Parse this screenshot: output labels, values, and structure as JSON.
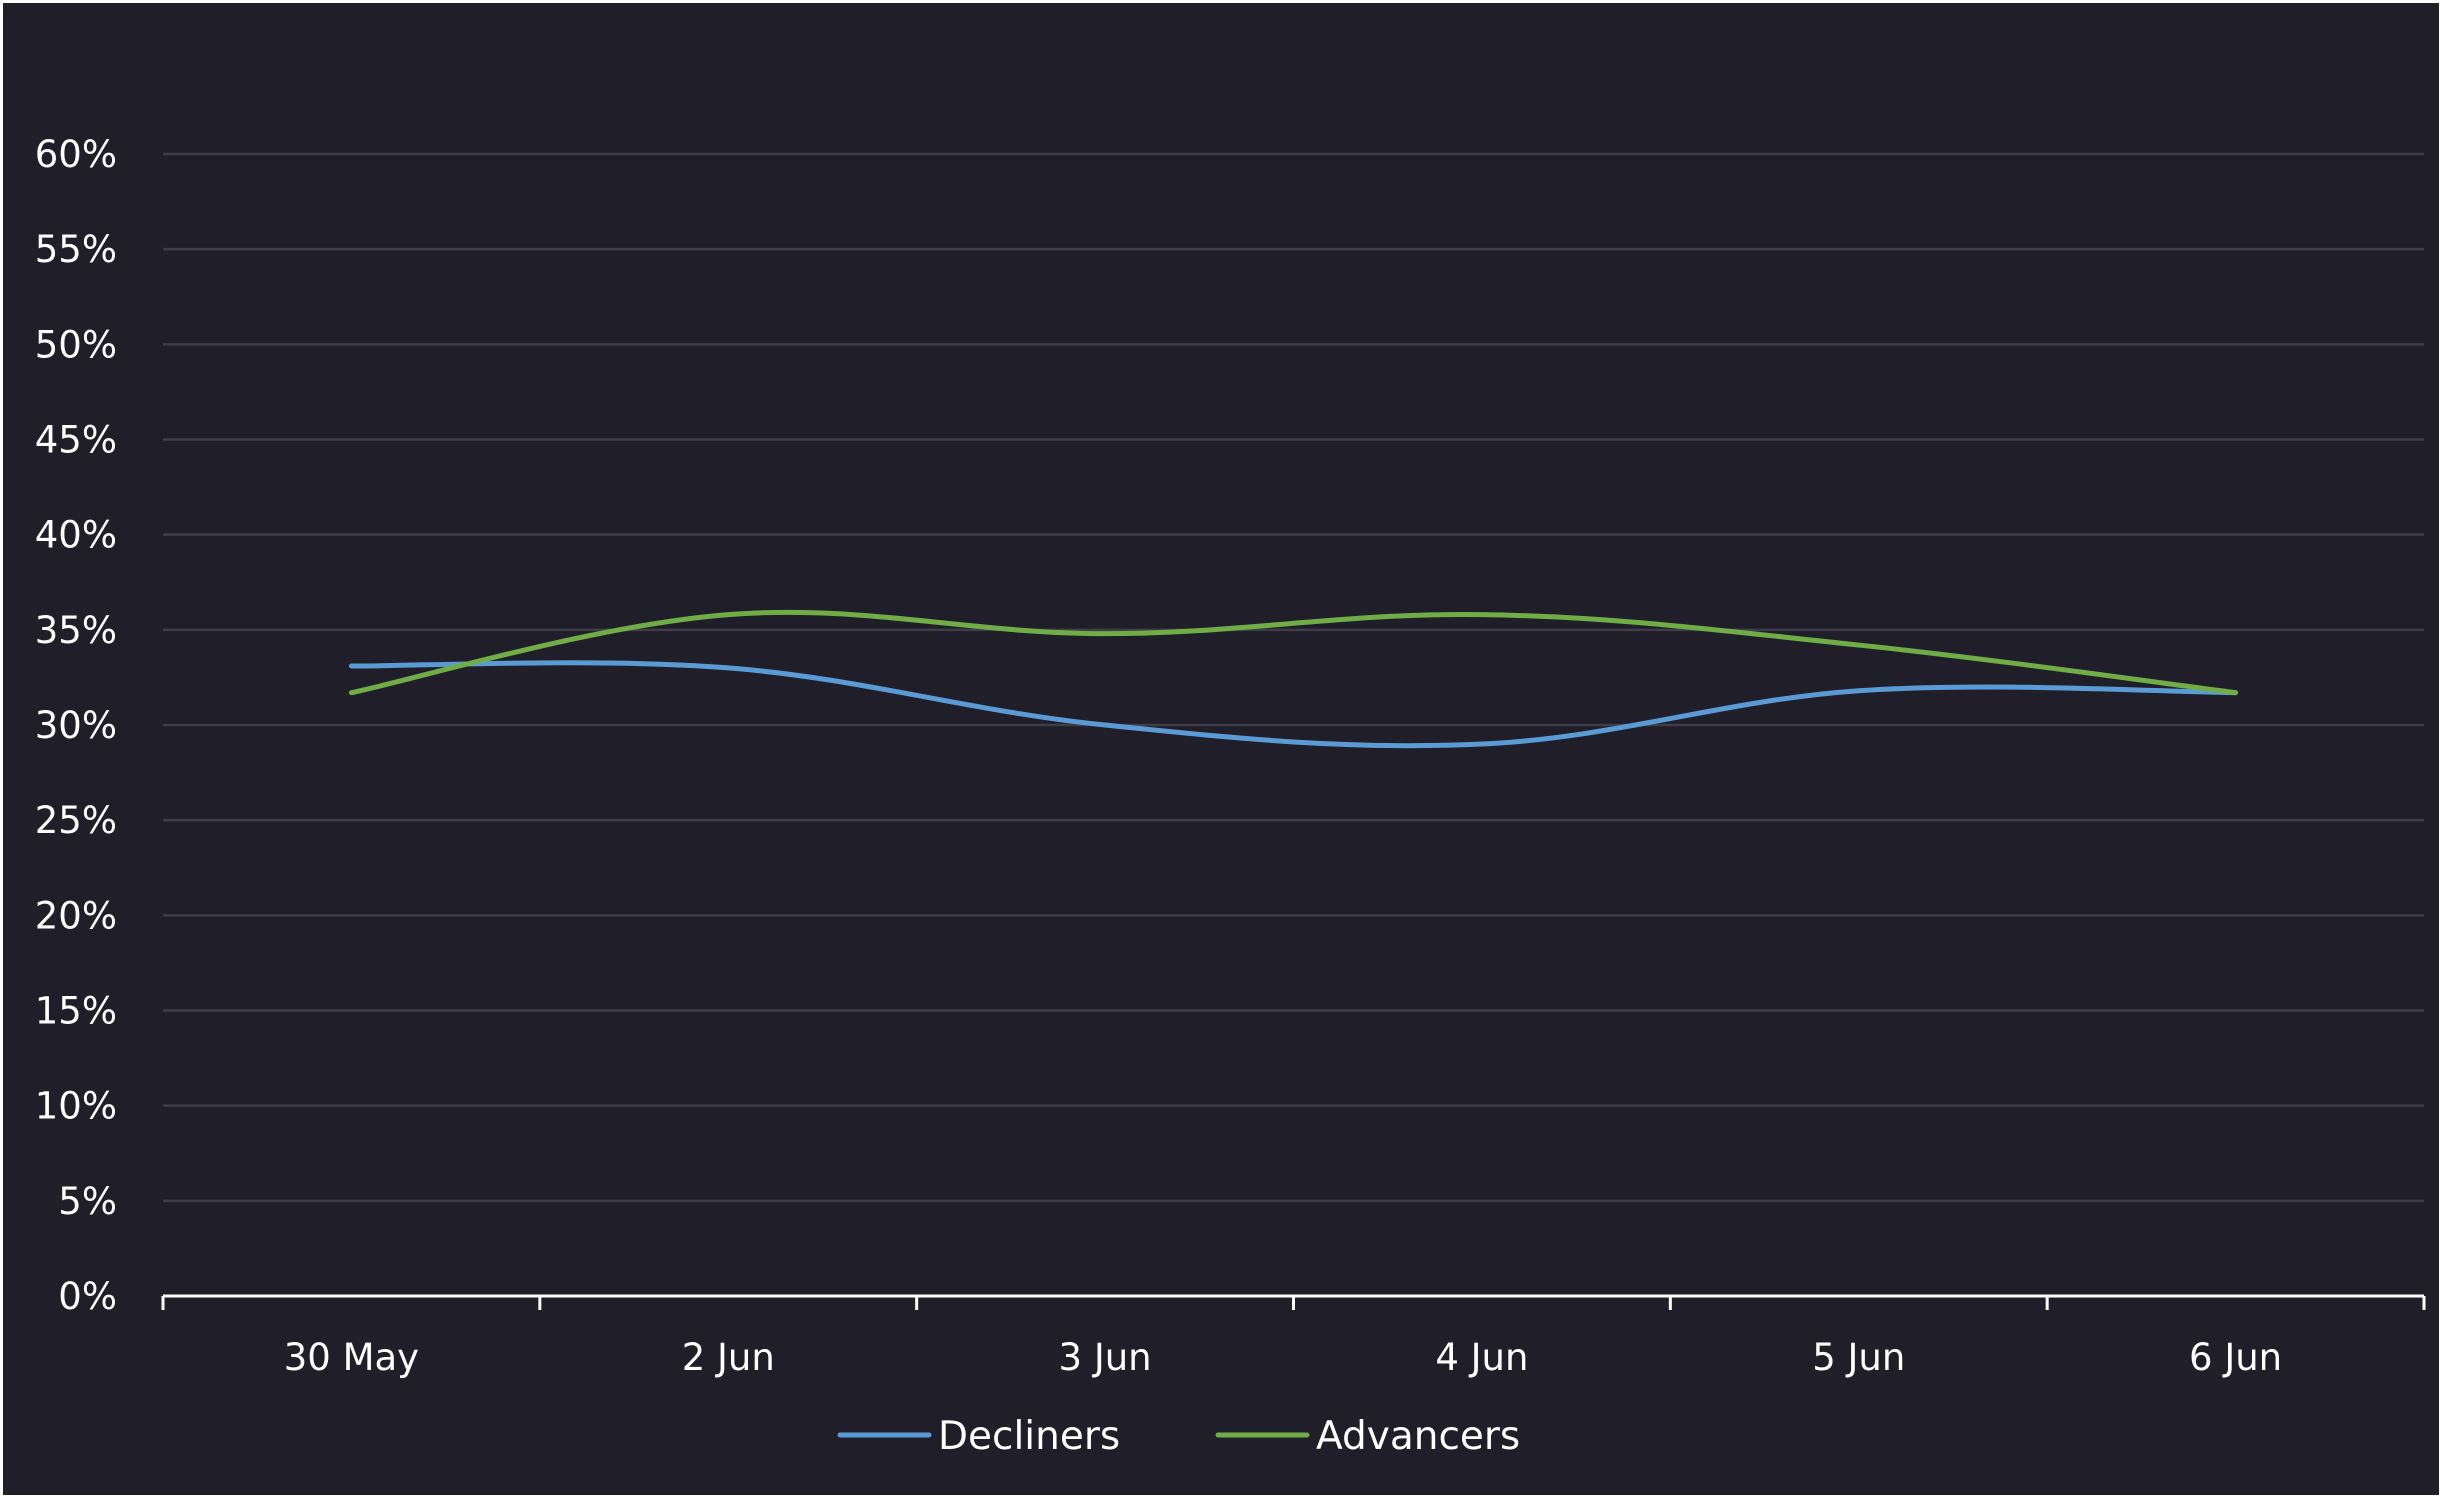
{
  "chart_data": {
    "type": "line",
    "title": "",
    "xlabel": "",
    "ylabel": "",
    "categories": [
      "30 May",
      "2 Jun",
      "3 Jun",
      "4 Jun",
      "5 Jun",
      "6 Jun"
    ],
    "y_ticks": [
      "0%",
      "5%",
      "10%",
      "15%",
      "20%",
      "25%",
      "30%",
      "35%",
      "40%",
      "45%",
      "50%",
      "55%",
      "60%"
    ],
    "ylim": [
      0,
      60
    ],
    "y_unit": "%",
    "grid": true,
    "legend_position": "bottom",
    "smoothed": true,
    "series": [
      {
        "name": "Decliners",
        "color": "#5b9bd5",
        "values": [
          33.1,
          33.0,
          30.0,
          29.0,
          31.8,
          31.7
        ]
      },
      {
        "name": "Advancers",
        "color": "#70ad47",
        "values": [
          31.7,
          35.8,
          34.8,
          35.8,
          34.2,
          31.7
        ]
      }
    ]
  },
  "colors": {
    "background": "#1f1e29",
    "gridline": "#3e3d48",
    "axis": "#ffffff",
    "text": "#ffffff"
  }
}
